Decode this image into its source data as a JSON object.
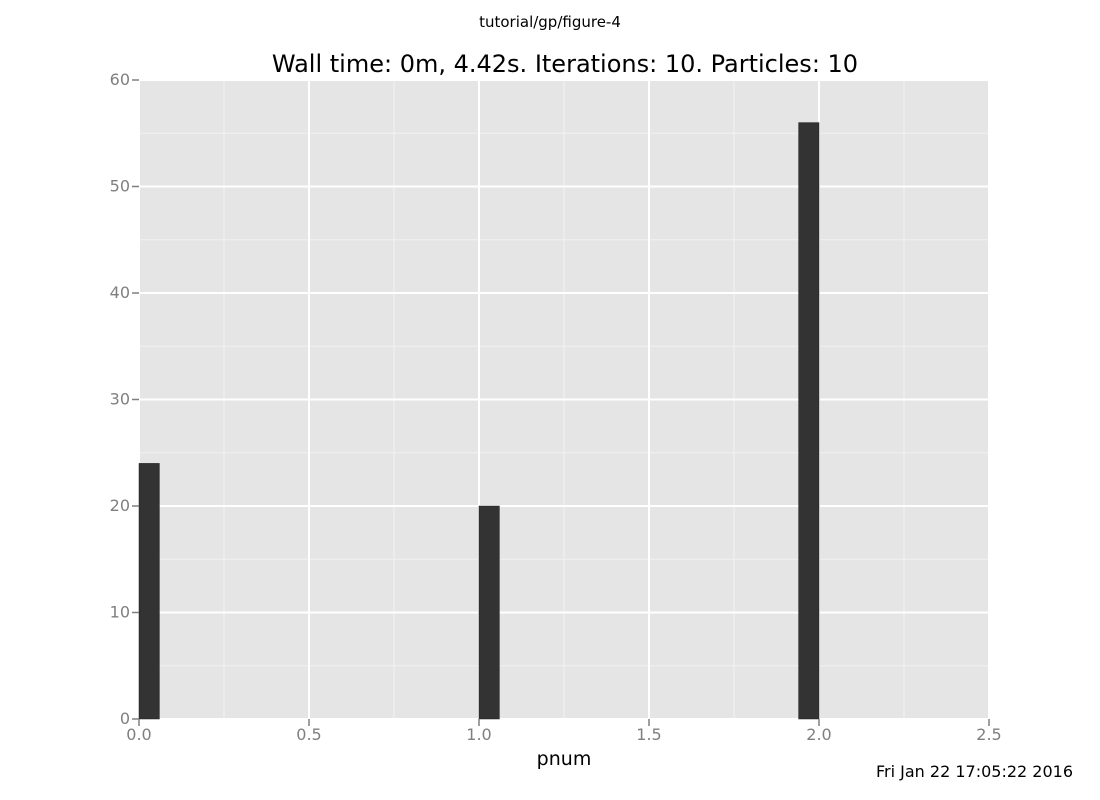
{
  "figure_label": "tutorial/gp/figure-4",
  "timestamp": "Fri Jan 22 17:05:22 2016",
  "colors": {
    "panel": "#e5e5e5",
    "grid_major": "#ffffff",
    "grid_minor": "#f2f2f2",
    "bar": "#333333",
    "tick_text": "#7f7f7f"
  },
  "chart_data": {
    "type": "bar",
    "title": "Wall time: 0m, 4.42s. Iterations: 10. Particles: 10",
    "xlabel": "pnum",
    "ylabel": "",
    "xlim": [
      0,
      2.5
    ],
    "ylim": [
      0,
      60
    ],
    "x_ticks": [
      0.0,
      0.5,
      1.0,
      1.5,
      2.0,
      2.5
    ],
    "x_tick_labels": [
      "0.0",
      "0.5",
      "1.0",
      "1.5",
      "2.0",
      "2.5"
    ],
    "y_ticks": [
      0,
      10,
      20,
      30,
      40,
      50,
      60
    ],
    "y_tick_labels": [
      "0",
      "10",
      "20",
      "30",
      "40",
      "50",
      "60"
    ],
    "grid": true,
    "bins": [
      {
        "x_start": 0.0,
        "x_end": 0.06,
        "value": 24
      },
      {
        "x_start": 1.0,
        "x_end": 1.06,
        "value": 20
      },
      {
        "x_start": 1.94,
        "x_end": 2.0,
        "value": 56
      }
    ]
  }
}
